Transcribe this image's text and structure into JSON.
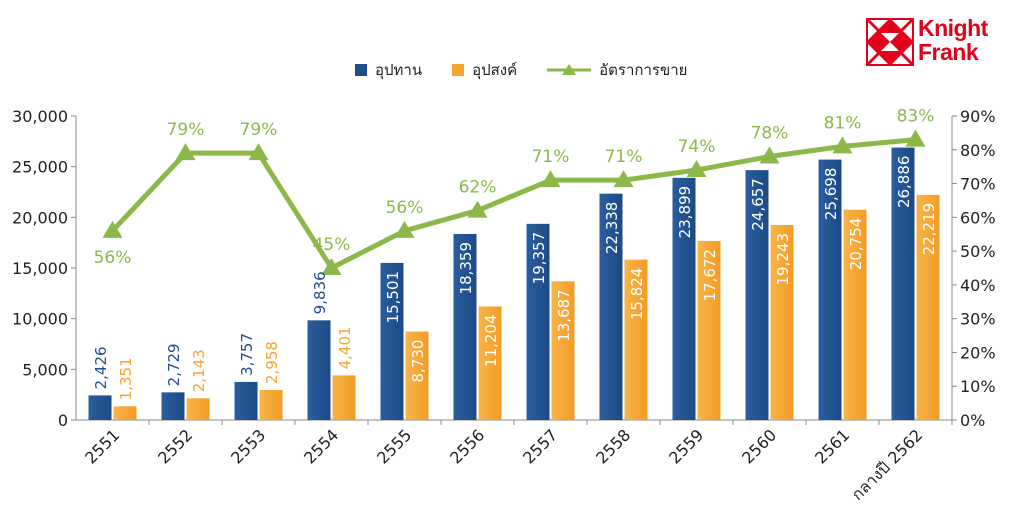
{
  "brand": {
    "line1": "Knight",
    "line2": "Frank",
    "color": "#e2001a"
  },
  "legend": [
    {
      "label": "อุปทาน",
      "color": "#1f4e8c",
      "kind": "bar"
    },
    {
      "label": "อุปสงค์",
      "color": "#f5a430",
      "kind": "bar"
    },
    {
      "label": "อัตราการขาย",
      "color": "#8cb84a",
      "kind": "line"
    }
  ],
  "chart_data": {
    "type": "bar",
    "categories": [
      "2551",
      "2552",
      "2553",
      "2554",
      "2555",
      "2556",
      "2557",
      "2558",
      "2559",
      "2560",
      "2561",
      "กลางปี 2562"
    ],
    "series": [
      {
        "name": "อุปทาน",
        "color": "#1f4e8c",
        "values": [
          2426,
          2729,
          3757,
          9836,
          15501,
          18359,
          19357,
          22338,
          23899,
          24657,
          25698,
          26886
        ],
        "labels": [
          "2,426",
          "2,729",
          "3,757",
          "9,836",
          "15,501",
          "18,359",
          "19,357",
          "22,338",
          "23,899",
          "24,657",
          "25,698",
          "26,886"
        ]
      },
      {
        "name": "อุปสงค์",
        "color": "#f5a430",
        "values": [
          1351,
          2143,
          2958,
          4401,
          8730,
          11204,
          13687,
          15824,
          17672,
          19243,
          20754,
          22219
        ],
        "labels": [
          "1,351",
          "2,143",
          "2,958",
          "4,401",
          "8,730",
          "11,204",
          "13,687",
          "15,824",
          "17,672",
          "19,243",
          "20,754",
          "22,219"
        ]
      },
      {
        "name": "อัตราการขาย",
        "type": "line",
        "axis": "right",
        "color": "#8cb84a",
        "values": [
          56,
          79,
          79,
          45,
          56,
          62,
          71,
          71,
          74,
          78,
          81,
          83
        ],
        "labels": [
          "56%",
          "79%",
          "79%",
          "45%",
          "56%",
          "62%",
          "71%",
          "71%",
          "74%",
          "78%",
          "81%",
          "83%"
        ]
      }
    ],
    "ylim": [
      0,
      30000
    ],
    "y_ticks": [
      "0",
      "5,000",
      "10,000",
      "15,000",
      "20,000",
      "25,000",
      "30,000"
    ],
    "y2lim": [
      0,
      90
    ],
    "y2_ticks": [
      "0%",
      "10%",
      "20%",
      "30%",
      "40%",
      "50%",
      "60%",
      "70%",
      "80%",
      "90%"
    ],
    "grid": false,
    "legend_position": "top-center"
  }
}
